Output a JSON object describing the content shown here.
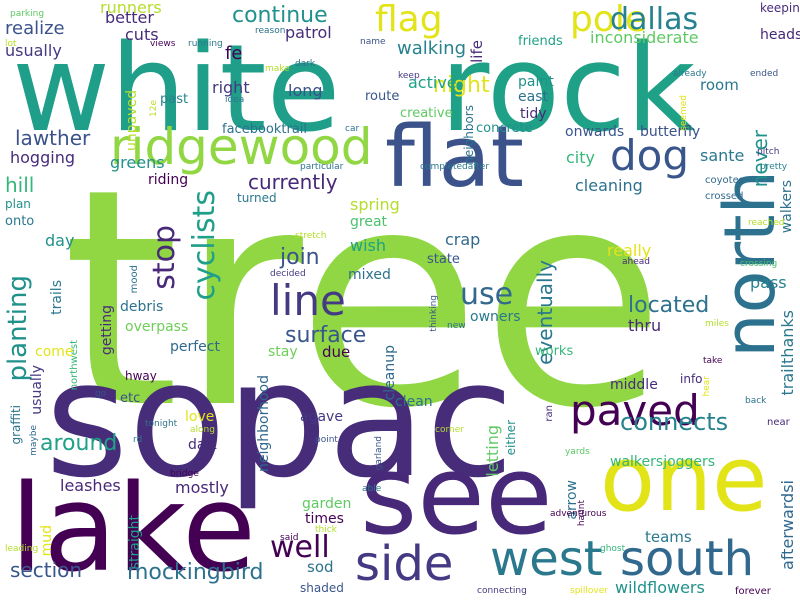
{
  "colors": {
    "background": "#ffffff",
    "palette": {
      "lime": "#90d743",
      "teal": "#21918c",
      "deep_purple": "#440154",
      "indigo": "#3b528b",
      "yellow": "#e2e418",
      "green": "#35b779",
      "aqua": "#1f9e89",
      "violet": "#482878",
      "steel": "#31688e",
      "sea": "#26828e",
      "light_green": "#6ece58",
      "ocean": "#2c728e",
      "pale_lime": "#b5de2b",
      "mint": "#5ec962",
      "blue_violet": "#443983",
      "jade": "#2a788e",
      "dark_teal": "#1fa187",
      "dusk": "#472c7a",
      "navy": "#39568c",
      "emerald": "#4ac16d"
    }
  },
  "words": [
    {
      "text": "tree",
      "color": "#90d743"
    },
    {
      "text": "sopac",
      "color": "#472c7a"
    },
    {
      "text": "white",
      "color": "#1f9e89"
    },
    {
      "text": "rock",
      "color": "#1fa187"
    },
    {
      "text": "lake",
      "color": "#440154"
    },
    {
      "text": "see",
      "color": "#482878"
    },
    {
      "text": "one",
      "color": "#e2e418"
    },
    {
      "text": "flat",
      "color": "#3b528b"
    },
    {
      "text": "north",
      "color": "#2c728e"
    },
    {
      "text": "ridgewood",
      "color": "#90d743"
    },
    {
      "text": "west",
      "color": "#2a788e"
    },
    {
      "text": "side",
      "color": "#443983"
    },
    {
      "text": "south",
      "color": "#31688e"
    },
    {
      "text": "paved",
      "color": "#440154"
    },
    {
      "text": "flag",
      "color": "#e2e418"
    },
    {
      "text": "pole",
      "color": "#e2e418"
    },
    {
      "text": "dog",
      "color": "#39568c"
    },
    {
      "text": "line",
      "color": "#443983"
    },
    {
      "text": "dallas",
      "color": "#26828e"
    },
    {
      "text": "cyclists",
      "color": "#1f9e89"
    },
    {
      "text": "stop",
      "color": "#482878"
    },
    {
      "text": "planting",
      "color": "#21918c"
    },
    {
      "text": "connects",
      "color": "#26828e"
    },
    {
      "text": "use",
      "color": "#31688e"
    },
    {
      "text": "located",
      "color": "#2c728e"
    },
    {
      "text": "well",
      "color": "#440154"
    },
    {
      "text": "surface",
      "color": "#39568c"
    },
    {
      "text": "join",
      "color": "#3b528b"
    },
    {
      "text": "night",
      "color": "#e2e418"
    },
    {
      "text": "continue",
      "color": "#21918c"
    },
    {
      "text": "mockingbird",
      "color": "#2c728e"
    },
    {
      "text": "lawther",
      "color": "#3b528b"
    },
    {
      "text": "walking",
      "color": "#26828e"
    },
    {
      "text": "never",
      "color": "#21918c"
    },
    {
      "text": "currently",
      "color": "#482878"
    },
    {
      "text": "section",
      "color": "#39568c"
    },
    {
      "text": "hill",
      "color": "#35b779"
    },
    {
      "text": "spring",
      "color": "#b5de2b"
    },
    {
      "text": "eventually",
      "color": "#2a788e"
    },
    {
      "text": "around",
      "color": "#1fa187"
    },
    {
      "text": "pass",
      "color": "#26828e"
    },
    {
      "text": "realize",
      "color": "#3b528b"
    },
    {
      "text": "runners",
      "color": "#b5de2b"
    },
    {
      "text": "usually",
      "color": "#443983"
    },
    {
      "text": "better",
      "color": "#472c7a"
    },
    {
      "text": "cuts",
      "color": "#472c7a"
    },
    {
      "text": "patrol",
      "color": "#472c7a"
    },
    {
      "text": "fe",
      "color": "#440154"
    },
    {
      "text": "inconsiderate",
      "color": "#5ec962"
    },
    {
      "text": "friends",
      "color": "#1fa187"
    },
    {
      "text": "heads",
      "color": "#482878"
    },
    {
      "text": "keeping",
      "color": "#472c7a"
    },
    {
      "text": "active",
      "color": "#1fa187"
    },
    {
      "text": "life",
      "color": "#472c7a"
    },
    {
      "text": "paint",
      "color": "#21918c"
    },
    {
      "text": "east",
      "color": "#2c728e"
    },
    {
      "text": "room",
      "color": "#2a788e"
    },
    {
      "text": "right",
      "color": "#443983"
    },
    {
      "text": "long",
      "color": "#3b528b"
    },
    {
      "text": "past",
      "color": "#26828e"
    },
    {
      "text": "route",
      "color": "#39568c"
    },
    {
      "text": "creative",
      "color": "#5ec962"
    },
    {
      "text": "tidy",
      "color": "#472c7a"
    },
    {
      "text": "concrete",
      "color": "#21918c"
    },
    {
      "text": "onwards",
      "color": "#39568c"
    },
    {
      "text": "butterfly",
      "color": "#3b528b"
    },
    {
      "text": "facebooktrail",
      "color": "#2c728e"
    },
    {
      "text": "hogging",
      "color": "#472c7a"
    },
    {
      "text": "greens",
      "color": "#21918c"
    },
    {
      "text": "riding",
      "color": "#440154"
    },
    {
      "text": "city",
      "color": "#35b779"
    },
    {
      "text": "sante",
      "color": "#2a788e"
    },
    {
      "text": "cleaning",
      "color": "#2c728e"
    },
    {
      "text": "turned",
      "color": "#2a788e"
    },
    {
      "text": "great",
      "color": "#4ac16d"
    },
    {
      "text": "wish",
      "color": "#1fa187"
    },
    {
      "text": "crap",
      "color": "#31688e"
    },
    {
      "text": "state",
      "color": "#39568c"
    },
    {
      "text": "really",
      "color": "#e2e418"
    },
    {
      "text": "mixed",
      "color": "#2c728e"
    },
    {
      "text": "owners",
      "color": "#2a788e"
    },
    {
      "text": "thru",
      "color": "#482878"
    },
    {
      "text": "plan",
      "color": "#21918c"
    },
    {
      "text": "onto",
      "color": "#2a788e"
    },
    {
      "text": "day",
      "color": "#21918c"
    },
    {
      "text": "trails",
      "color": "#2a788e"
    },
    {
      "text": "northwest",
      "color": "#35b779"
    },
    {
      "text": "getting",
      "color": "#472c7a"
    },
    {
      "text": "debris",
      "color": "#2c728e"
    },
    {
      "text": "overpass",
      "color": "#6ece58"
    },
    {
      "text": "come",
      "color": "#e2e418"
    },
    {
      "text": "perfect",
      "color": "#31688e"
    },
    {
      "text": "stay",
      "color": "#6ece58"
    },
    {
      "text": "due",
      "color": "#440154"
    },
    {
      "text": "works",
      "color": "#35b779"
    },
    {
      "text": "hway",
      "color": "#440154"
    },
    {
      "text": "middle",
      "color": "#472c7a"
    },
    {
      "text": "info",
      "color": "#472c7a"
    },
    {
      "text": "etc",
      "color": "#3b528b"
    },
    {
      "text": "neighborhood",
      "color": "#31688e"
    },
    {
      "text": "cleanup",
      "color": "#31688e"
    },
    {
      "text": "clean",
      "color": "#2c728e"
    },
    {
      "text": "agave",
      "color": "#443983"
    },
    {
      "text": "love",
      "color": "#e2e418"
    },
    {
      "text": "dart",
      "color": "#472c7a"
    },
    {
      "text": "letting",
      "color": "#5ec962"
    },
    {
      "text": "either",
      "color": "#21918c"
    },
    {
      "text": "walkersjoggers",
      "color": "#35b779"
    },
    {
      "text": "leashes",
      "color": "#482878"
    },
    {
      "text": "mostly",
      "color": "#482878"
    },
    {
      "text": "mud",
      "color": "#e2e418"
    },
    {
      "text": "garden",
      "color": "#5ec962"
    },
    {
      "text": "times",
      "color": "#440154"
    },
    {
      "text": "arrow",
      "color": "#2c728e"
    },
    {
      "text": "teams",
      "color": "#2a788e"
    },
    {
      "text": "sod",
      "color": "#2c728e"
    },
    {
      "text": "shaded",
      "color": "#39568c"
    },
    {
      "text": "wildflowers",
      "color": "#21918c"
    },
    {
      "text": "straight",
      "color": "#1fa187"
    },
    {
      "text": "afterwardsi",
      "color": "#31688e"
    },
    {
      "text": "trailthanks",
      "color": "#2a788e"
    },
    {
      "text": "walkers",
      "color": "#2c728e"
    },
    {
      "text": "graffiti",
      "color": "#2c728e"
    },
    {
      "text": "usually_small",
      "color": "#443983"
    },
    {
      "text": "unpaved",
      "color": "#b5de2b"
    },
    {
      "text": "neighbors",
      "color": "#2c728e"
    },
    {
      "text": "coyotes",
      "color": "#31688e"
    },
    {
      "text": "crossed",
      "color": "#31688e"
    },
    {
      "text": "completedafter",
      "color": "#2a788e"
    },
    {
      "text": "particular",
      "color": "#2c728e"
    },
    {
      "text": "stretch",
      "color": "#b5de2b"
    },
    {
      "text": "decided",
      "color": "#443983"
    },
    {
      "text": "thinking",
      "color": "#3b528b"
    },
    {
      "text": "new",
      "color": "#2c728e"
    },
    {
      "text": "miles",
      "color": "#b5de2b"
    },
    {
      "text": "ahead",
      "color": "#472c7a"
    },
    {
      "text": "crossing",
      "color": "#4ac16d"
    },
    {
      "text": "take",
      "color": "#440154"
    },
    {
      "text": "hear",
      "color": "#e2e418"
    },
    {
      "text": "seemed",
      "color": "#e2e418"
    },
    {
      "text": "already",
      "color": "#2a788e"
    },
    {
      "text": "pitch",
      "color": "#443983"
    },
    {
      "text": "pretty",
      "color": "#26828e"
    },
    {
      "text": "ended",
      "color": "#39568c"
    },
    {
      "text": "reached",
      "color": "#b5de2b"
    },
    {
      "text": "back",
      "color": "#2c728e"
    },
    {
      "text": "near",
      "color": "#472c7a"
    },
    {
      "text": "forever",
      "color": "#440154"
    },
    {
      "text": "spillover",
      "color": "#e2e418"
    },
    {
      "text": "connecting",
      "color": "#443983"
    },
    {
      "text": "ghost",
      "color": "#35b779"
    },
    {
      "text": "adventurous",
      "color": "#440154"
    },
    {
      "text": "haunt",
      "color": "#440154"
    },
    {
      "text": "yards",
      "color": "#5ec962"
    },
    {
      "text": "ran",
      "color": "#472c7a"
    },
    {
      "text": "garland",
      "color": "#3b528b"
    },
    {
      "text": "corner",
      "color": "#b5de2b"
    },
    {
      "text": "able",
      "color": "#2a788e"
    },
    {
      "text": "point",
      "color": "#3b528b"
    },
    {
      "text": "along",
      "color": "#b5de2b"
    },
    {
      "text": "tonight",
      "color": "#2c728e"
    },
    {
      "text": "go",
      "color": "#3b528b"
    },
    {
      "text": "maybe",
      "color": "#31688e"
    },
    {
      "text": "rd",
      "color": "#2a788e"
    },
    {
      "text": "bridge",
      "color": "#440154"
    },
    {
      "text": "said",
      "color": "#440154"
    },
    {
      "text": "thick",
      "color": "#b5de2b"
    },
    {
      "text": "leading",
      "color": "#b5de2b"
    },
    {
      "text": "mood",
      "color": "#2c728e"
    },
    {
      "text": "12e",
      "color": "#b5de2b"
    },
    {
      "text": "idea",
      "color": "#2a788e"
    },
    {
      "text": "car",
      "color": "#2c728e"
    },
    {
      "text": "make",
      "color": "#b5de2b"
    },
    {
      "text": "dark",
      "color": "#2c728e"
    },
    {
      "text": "name",
      "color": "#3b528b"
    },
    {
      "text": "keep",
      "color": "#443983"
    },
    {
      "text": "reason",
      "color": "#2c728e"
    },
    {
      "text": "running",
      "color": "#2a788e"
    },
    {
      "text": "views",
      "color": "#440154"
    },
    {
      "text": "lot",
      "color": "#b5de2b"
    },
    {
      "text": "parking",
      "color": "#5ec962"
    }
  ]
}
